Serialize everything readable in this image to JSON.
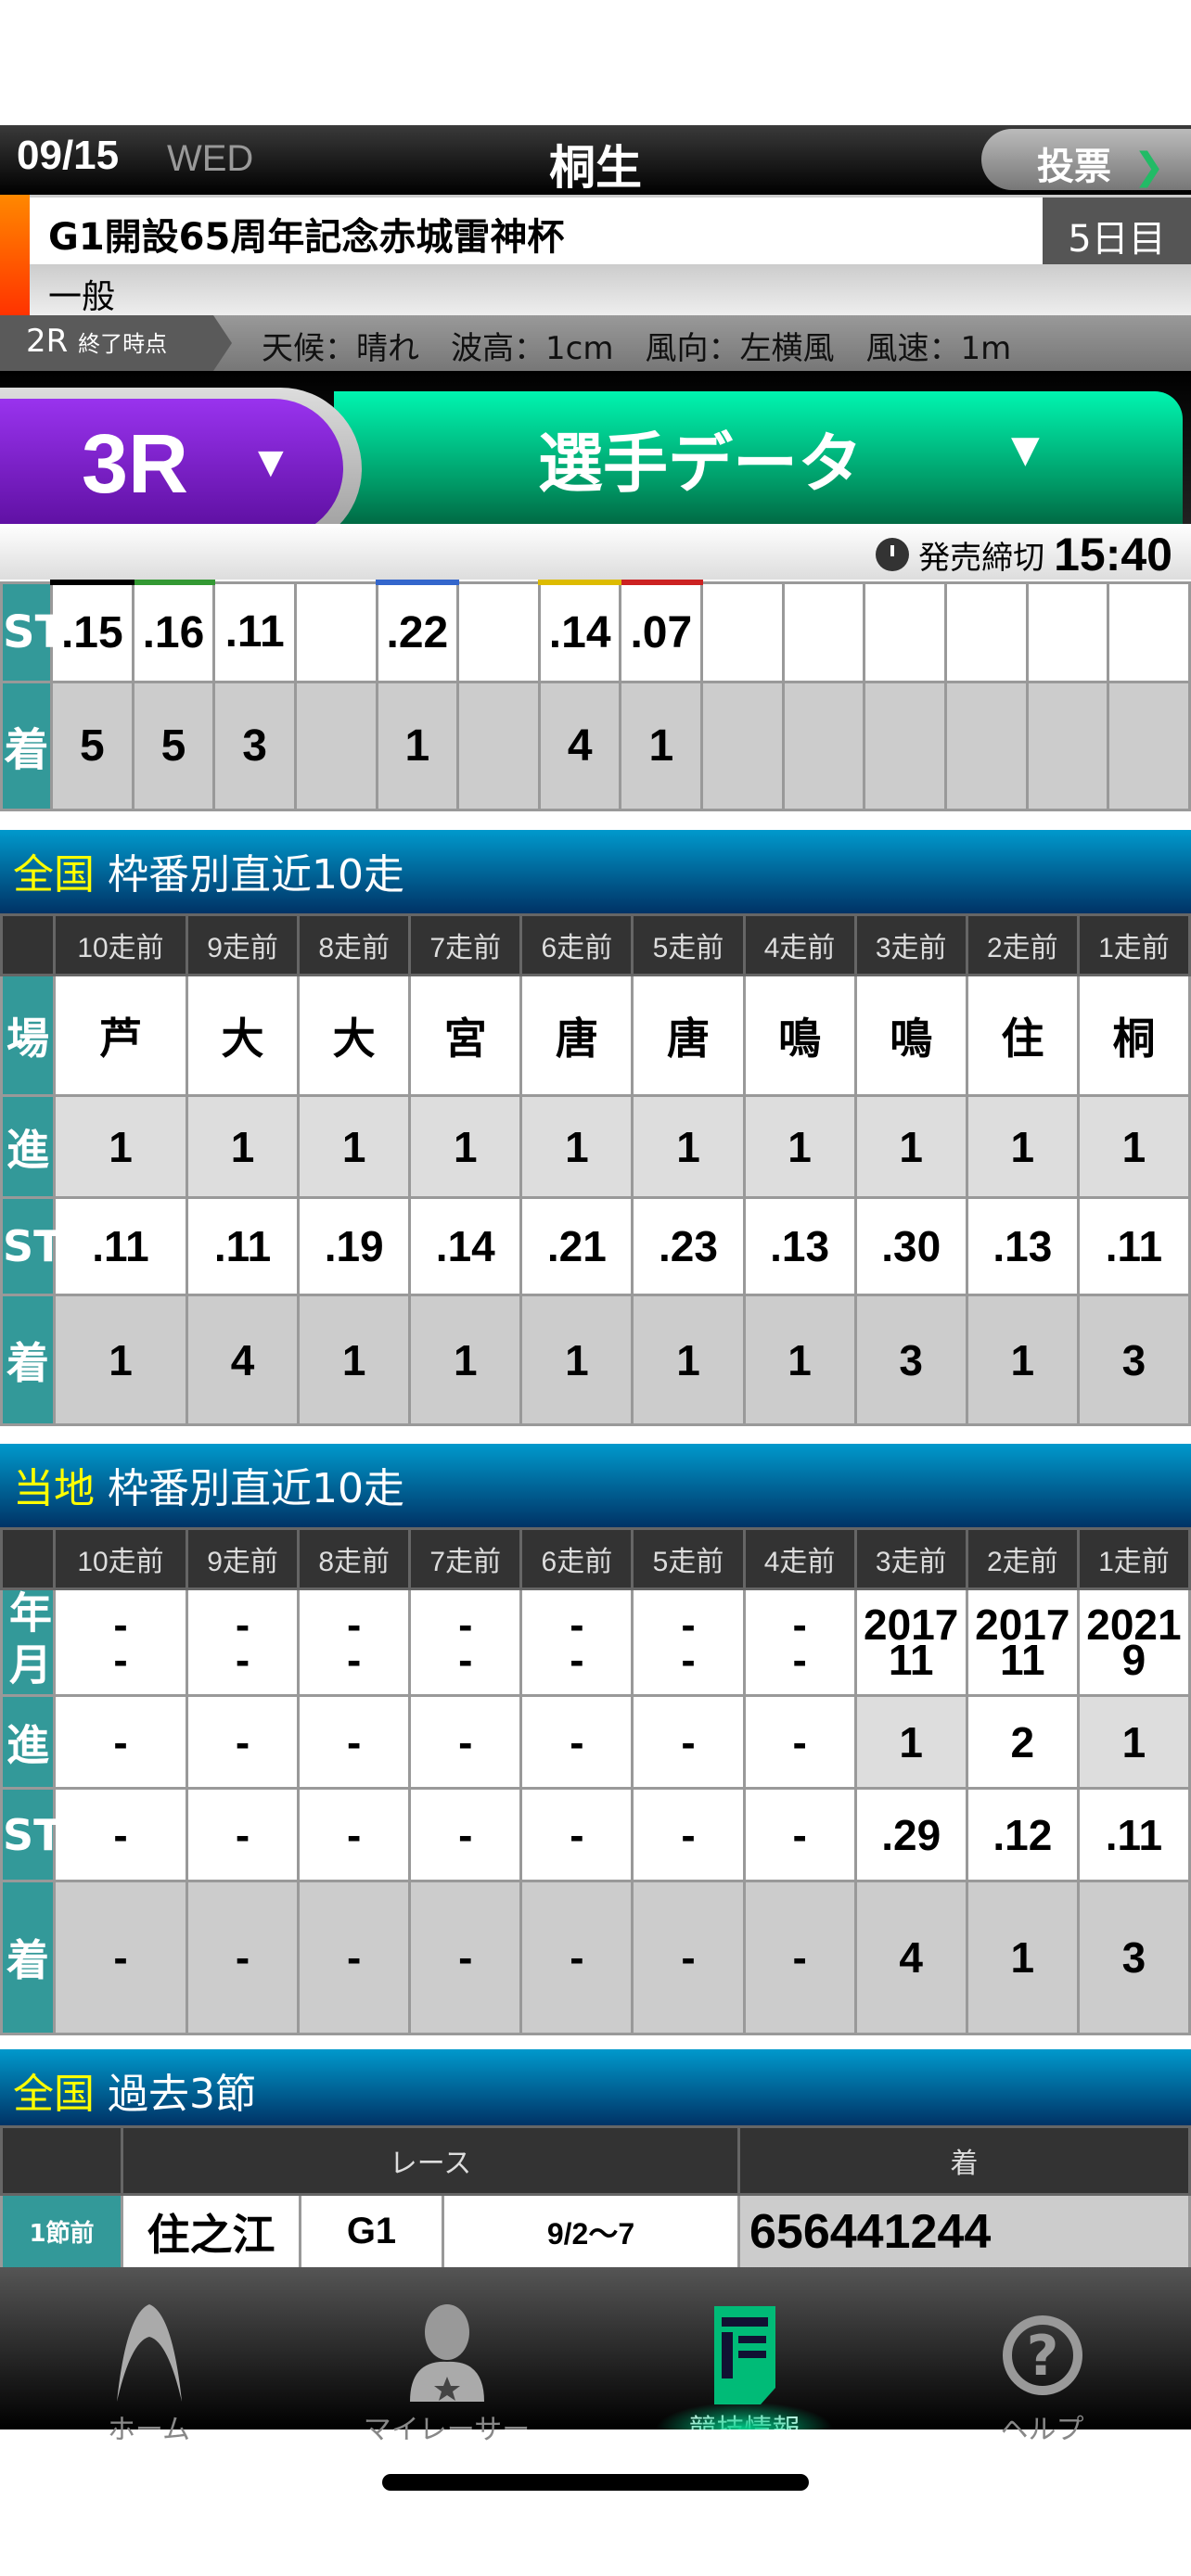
{
  "header": {
    "date": "09/15",
    "weekday": "WED",
    "venue": "桐生",
    "vote_label": "投票",
    "vote_chevron": "❯"
  },
  "race_info": {
    "title": "G1開設65周年記念赤城雷神杯",
    "day": "5日目",
    "grade": "一般",
    "weather_label": "2R",
    "weather_label_suffix": "終了時点",
    "weather": "天候：晴れ　波高：1cm　風向：左横風　風速：1m"
  },
  "race_selector": {
    "race": "3R",
    "arrow": "▼",
    "view": "選手データ",
    "view_arrow": "▼"
  },
  "deadline": {
    "label": "発売締切",
    "time": "15:40"
  },
  "session_results": {
    "lane_colors": [
      "#000000",
      "#339933",
      "",
      "",
      "#3366cc",
      "",
      "#ddbb00",
      "#cc2222",
      "",
      "",
      "",
      "",
      "",
      ""
    ],
    "st_label": "ST",
    "st": [
      ".15",
      ".16",
      ".11",
      "",
      ".22",
      "",
      ".14",
      ".07",
      "",
      "",
      "",
      "",
      "",
      ""
    ],
    "finish_label": "着",
    "finish": [
      "5",
      "5",
      "3",
      "",
      "1",
      "",
      "4",
      "1",
      "",
      "",
      "",
      "",
      "",
      ""
    ]
  },
  "national_recent": {
    "prefix": "全国",
    "title": "枠番別直近10走",
    "columns": [
      "10走前",
      "9走前",
      "8走前",
      "7走前",
      "6走前",
      "5走前",
      "4走前",
      "3走前",
      "2走前",
      "1走前"
    ],
    "rows": [
      {
        "label": "場",
        "values": [
          "芦",
          "大",
          "大",
          "宮",
          "唐",
          "唐",
          "鳴",
          "鳴",
          "住",
          "桐"
        ]
      },
      {
        "label": "進",
        "values": [
          "1",
          "1",
          "1",
          "1",
          "1",
          "1",
          "1",
          "1",
          "1",
          "1"
        ]
      },
      {
        "label": "ST",
        "values": [
          ".11",
          ".11",
          ".19",
          ".14",
          ".21",
          ".23",
          ".13",
          ".30",
          ".13",
          ".11"
        ]
      },
      {
        "label": "着",
        "values": [
          "1",
          "4",
          "1",
          "1",
          "1",
          "1",
          "1",
          "3",
          "1",
          "3"
        ]
      }
    ]
  },
  "local_recent": {
    "prefix": "当地",
    "title": "枠番別直近10走",
    "columns": [
      "10走前",
      "9走前",
      "8走前",
      "7走前",
      "6走前",
      "5走前",
      "4走前",
      "3走前",
      "2走前",
      "1走前"
    ],
    "year_month_label": "年月",
    "year_month": [
      [
        "-",
        "-"
      ],
      [
        "-",
        "-"
      ],
      [
        "-",
        "-"
      ],
      [
        "-",
        "-"
      ],
      [
        "-",
        "-"
      ],
      [
        "-",
        "-"
      ],
      [
        "-",
        "-"
      ],
      [
        "2017",
        "11"
      ],
      [
        "2017",
        "11"
      ],
      [
        "2021",
        "9"
      ]
    ],
    "rows": [
      {
        "label": "進",
        "values": [
          "-",
          "-",
          "-",
          "-",
          "-",
          "-",
          "-",
          "1",
          "2",
          "1"
        ]
      },
      {
        "label": "ST",
        "values": [
          "-",
          "-",
          "-",
          "-",
          "-",
          "-",
          "-",
          ".29",
          ".12",
          ".11"
        ]
      },
      {
        "label": "着",
        "values": [
          "-",
          "-",
          "-",
          "-",
          "-",
          "-",
          "-",
          "4",
          "1",
          "3"
        ]
      }
    ]
  },
  "past_sessions": {
    "prefix": "全国",
    "title": "過去3節",
    "col_race": "レース",
    "col_finish": "着",
    "rows": [
      {
        "label": "1節前",
        "venue": "住之江",
        "grade": "G1",
        "dates": "9/2〜7",
        "finishes": "656441244"
      }
    ]
  },
  "nav": [
    {
      "label": "ホーム",
      "icon": "home-arc-icon"
    },
    {
      "label": "マイレーサー",
      "icon": "my-racer-icon"
    },
    {
      "label": "競技情報",
      "icon": "race-info-icon",
      "active": true
    },
    {
      "label": "ヘルプ",
      "icon": "help-icon"
    }
  ],
  "colors": {
    "label_cell": "#339999",
    "accent_green": "#00cc88",
    "race_purple": "#7722cc",
    "section_blue": "#0077aa"
  }
}
